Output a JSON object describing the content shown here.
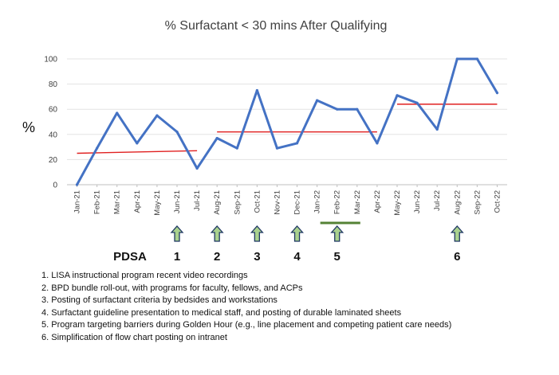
{
  "chart_data": {
    "type": "line",
    "title": "% Surfactant < 30 mins After Qualifying",
    "ylabel": "%",
    "ylim": [
      0,
      100
    ],
    "yticks": [
      0,
      20,
      40,
      60,
      80,
      100
    ],
    "grid": "horizontal",
    "categories": [
      "Jan-21",
      "Feb-21",
      "Mar-21",
      "Apr-21",
      "May-21",
      "Jun-21",
      "Jul-21",
      "Aug-21",
      "Sep-21",
      "Oct-21",
      "Nov-21",
      "Dec-21",
      "Jan-22",
      "Feb-22",
      "Mar-22",
      "Apr-22",
      "May-22",
      "Jun-22",
      "Jul-22",
      "Aug-22",
      "Sep-22",
      "Oct-22"
    ],
    "series": [
      {
        "values": [
          0,
          29,
          57,
          33,
          55,
          42,
          13,
          37,
          29,
          75,
          29,
          33,
          67,
          60,
          60,
          33,
          71,
          65,
          44,
          100,
          100,
          73
        ],
        "color": "#4472c4"
      }
    ],
    "median_segments": [
      {
        "from": "Jan-21",
        "to": "Jul-21",
        "start": 25,
        "end": 27
      },
      {
        "from": "Aug-21",
        "to": "Apr-22",
        "start": 42,
        "end": 42
      },
      {
        "from": "May-22",
        "to": "Oct-22",
        "start": 64,
        "end": 64
      }
    ],
    "median_color": "#e02020",
    "pdsa_label": "PDSA",
    "pdsa_markers": [
      {
        "number": "1",
        "month": "Jun-21"
      },
      {
        "number": "2",
        "month": "Aug-21"
      },
      {
        "number": "3",
        "month": "Oct-21"
      },
      {
        "number": "4",
        "month": "Dec-21"
      },
      {
        "number": "5",
        "month": "Feb-22",
        "span": [
          "Jan-22",
          "Mar-22"
        ]
      },
      {
        "number": "6",
        "month": "Aug-22"
      }
    ],
    "arrow_color": "#a9d18e",
    "span_color": "#548235"
  },
  "notes": [
    "1.  LISA instructional program recent video recordings",
    "2.  BPD bundle roll-out, with programs for faculty, fellows, and ACPs",
    "3.  Posting of surfactant criteria by bedsides and workstations",
    "4.  Surfactant guideline presentation to medical staff, and posting of durable laminated sheets",
    "5.  Program targeting barriers during Golden Hour (e.g., line placement and competing patient care needs)",
    "6.  Simplification of flow chart posting on intranet"
  ]
}
